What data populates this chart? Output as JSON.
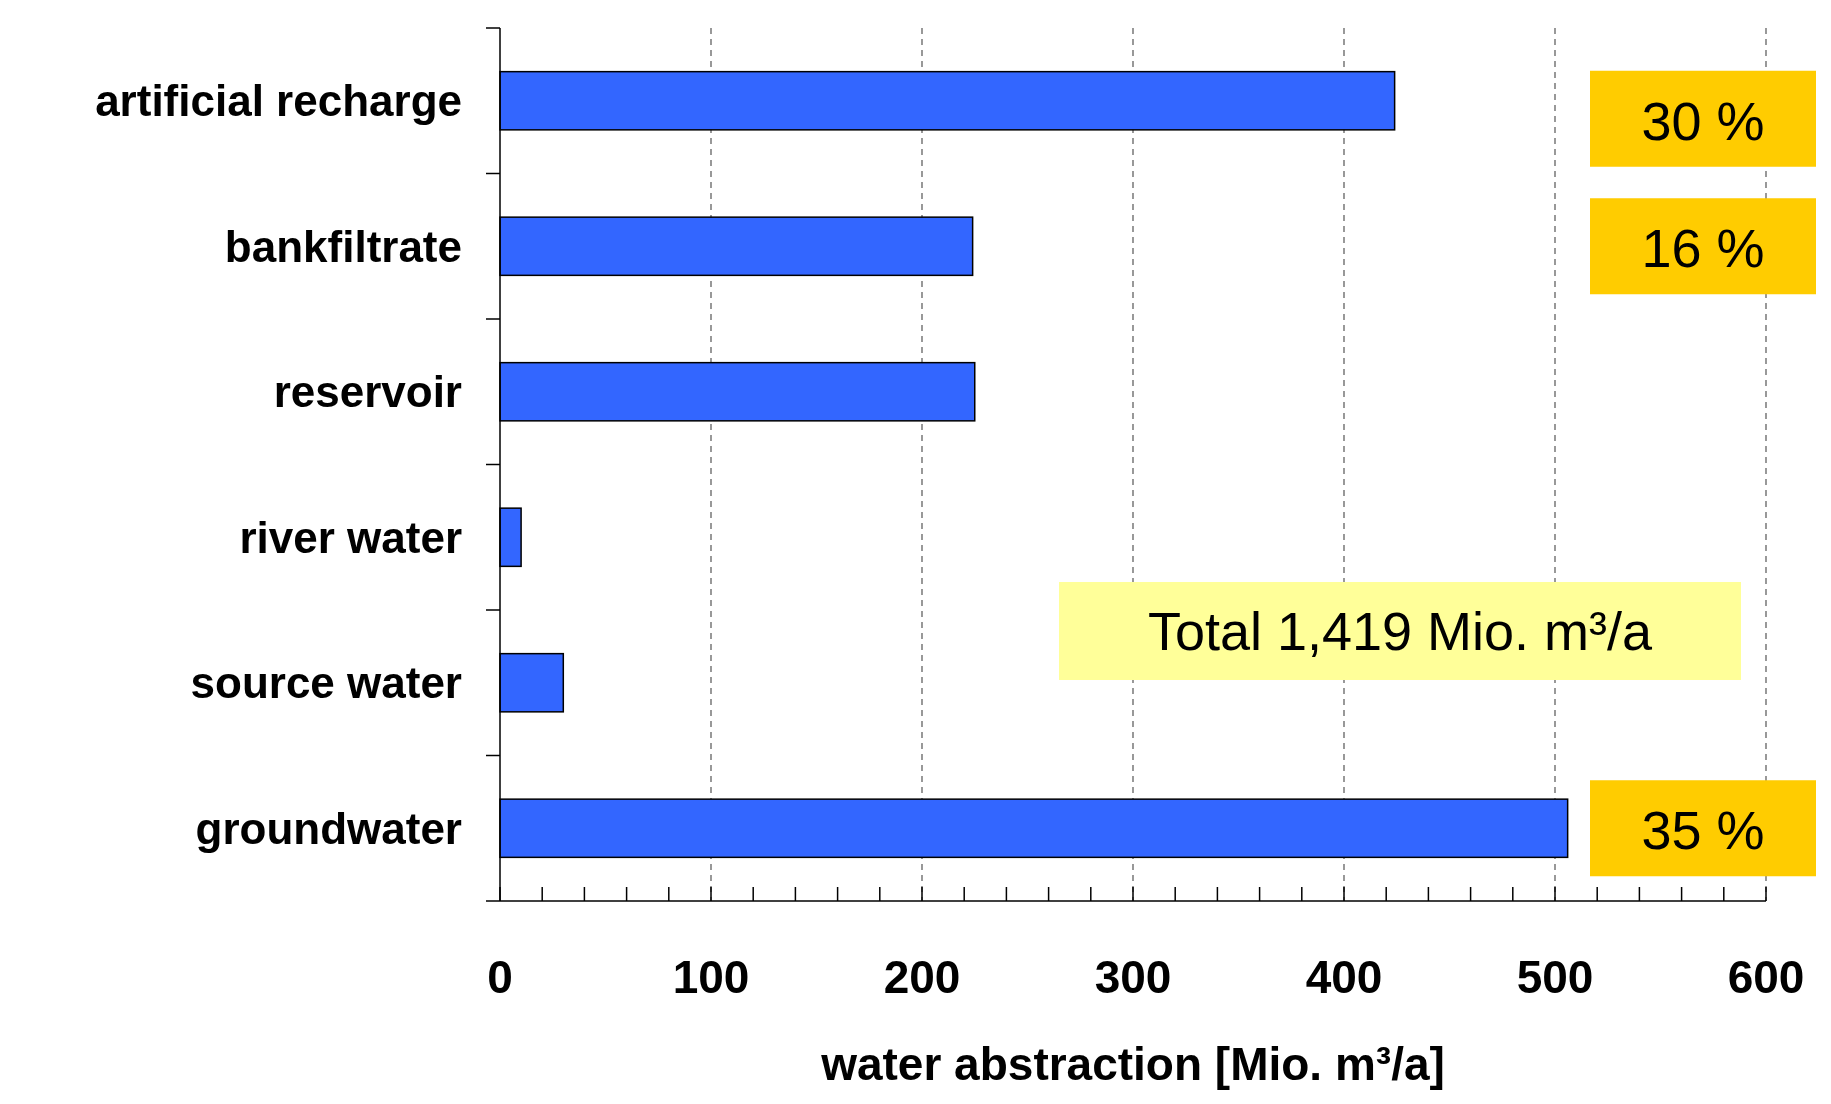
{
  "chart_data": {
    "type": "bar",
    "orientation": "horizontal",
    "categories": [
      "artificial recharge",
      "bankfiltrate",
      "reservoir",
      "river water",
      "source water",
      "groundwater"
    ],
    "values": [
      424,
      224,
      225,
      10,
      30,
      506
    ],
    "color": "#3366ff",
    "xlabel": "water abstraction [Mio. m³/a]",
    "xlim": [
      0,
      600
    ],
    "xticks": [
      0,
      {
        "value": 20,
        "label": null
      },
      {
        "value": 40,
        "label": null
      },
      {
        "value": 60,
        "label": null
      },
      {
        "value": 80,
        "label": null
      },
      100,
      {
        "value": 120,
        "label": null
      },
      {
        "value": 140,
        "label": null
      },
      {
        "value": 160,
        "label": null
      },
      {
        "value": 180,
        "label": null
      },
      200,
      {
        "value": 220,
        "label": null
      },
      {
        "value": 240,
        "label": null
      },
      {
        "value": 260,
        "label": null
      },
      {
        "value": 280,
        "label": null
      },
      300,
      {
        "value": 320,
        "label": null
      },
      {
        "value": 340,
        "label": null
      },
      {
        "value": 360,
        "label": null
      },
      {
        "value": 380,
        "label": null
      },
      400,
      {
        "value": 420,
        "label": null
      },
      {
        "value": 440,
        "label": null
      },
      {
        "value": 460,
        "label": null
      },
      {
        "value": 480,
        "label": null
      },
      500,
      {
        "value": 520,
        "label": null
      },
      {
        "value": 540,
        "label": null
      },
      {
        "value": 560,
        "label": null
      },
      {
        "value": 580,
        "label": null
      },
      600
    ],
    "grid": "x",
    "annotations": [
      "30 %",
      "16 %",
      "35 %",
      "Total 1,419 Mio. m³/a"
    ]
  }
}
